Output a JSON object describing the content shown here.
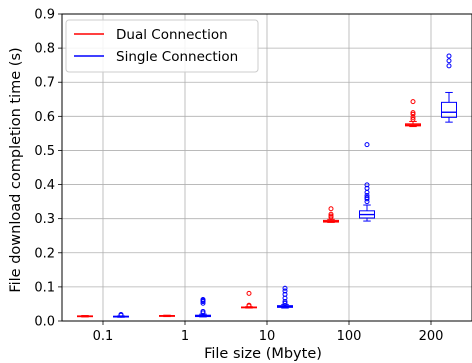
{
  "chart_data": {
    "type": "box",
    "xlabel": "File size (Mbyte)",
    "ylabel": "File download completion time (s)",
    "ylim": [
      0,
      0.9
    ],
    "yticks": [
      "0.0",
      "0.1",
      "0.2",
      "0.3",
      "0.4",
      "0.5",
      "0.6",
      "0.7",
      "0.8",
      "0.9"
    ],
    "categories": [
      "0.1",
      "1",
      "10",
      "100",
      "200"
    ],
    "grid": true,
    "legend_position": "top-left",
    "series": [
      {
        "name": "Dual Connection",
        "color": "#ff0000",
        "boxes": [
          {
            "q1": 0.013,
            "median": 0.014,
            "q3": 0.015,
            "whisker_low": 0.012,
            "whisker_high": 0.016,
            "outliers": []
          },
          {
            "q1": 0.014,
            "median": 0.015,
            "q3": 0.016,
            "whisker_low": 0.013,
            "whisker_high": 0.017,
            "outliers": []
          },
          {
            "q1": 0.039,
            "median": 0.04,
            "q3": 0.041,
            "whisker_low": 0.038,
            "whisker_high": 0.042,
            "outliers": [
              0.044,
              0.046,
              0.081
            ]
          },
          {
            "q1": 0.29,
            "median": 0.292,
            "q3": 0.295,
            "whisker_low": 0.289,
            "whisker_high": 0.298,
            "outliers": [
              0.304,
              0.308,
              0.313,
              0.329
            ]
          },
          {
            "q1": 0.572,
            "median": 0.575,
            "q3": 0.578,
            "whisker_low": 0.57,
            "whisker_high": 0.585,
            "outliers": [
              0.591,
              0.597,
              0.606,
              0.611,
              0.643
            ]
          }
        ]
      },
      {
        "name": "Single Connection",
        "color": "#0000ff",
        "boxes": [
          {
            "q1": 0.012,
            "median": 0.013,
            "q3": 0.014,
            "whisker_low": 0.011,
            "whisker_high": 0.015,
            "outliers": [
              0.017,
              0.019
            ]
          },
          {
            "q1": 0.013,
            "median": 0.015,
            "q3": 0.017,
            "whisker_low": 0.012,
            "whisker_high": 0.02,
            "outliers": [
              0.024,
              0.028,
              0.052,
              0.057,
              0.06,
              0.063
            ]
          },
          {
            "q1": 0.04,
            "median": 0.043,
            "q3": 0.045,
            "whisker_low": 0.038,
            "whisker_high": 0.048,
            "outliers": [
              0.052,
              0.057,
              0.067,
              0.078,
              0.088,
              0.096
            ]
          },
          {
            "q1": 0.302,
            "median": 0.312,
            "q3": 0.323,
            "whisker_low": 0.293,
            "whisker_high": 0.34,
            "outliers": [
              0.35,
              0.358,
              0.362,
              0.368,
              0.377,
              0.389,
              0.399,
              0.517
            ]
          },
          {
            "q1": 0.597,
            "median": 0.612,
            "q3": 0.641,
            "whisker_low": 0.583,
            "whisker_high": 0.67,
            "outliers": [
              0.748,
              0.763,
              0.777
            ]
          }
        ]
      }
    ]
  }
}
